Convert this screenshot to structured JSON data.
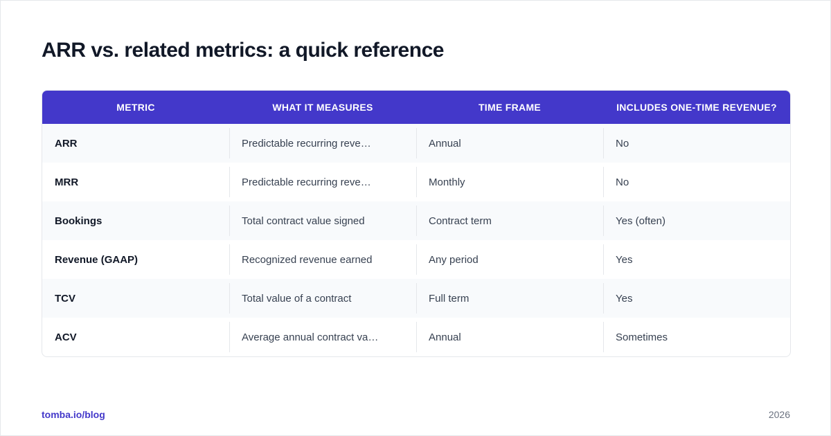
{
  "header": {
    "title": "ARR vs. related metrics: a quick reference"
  },
  "table": {
    "columns": [
      "METRIC",
      "WHAT IT MEASURES",
      "TIME FRAME",
      "INCLUDES ONE-TIME REVENUE?"
    ],
    "rows": [
      [
        "ARR",
        "Predictable recurring reve…",
        "Annual",
        "No"
      ],
      [
        "MRR",
        "Predictable recurring reve…",
        "Monthly",
        "No"
      ],
      [
        "Bookings",
        "Total contract value signed",
        "Contract term",
        "Yes (often)"
      ],
      [
        "Revenue (GAAP)",
        "Recognized revenue earned",
        "Any period",
        "Yes"
      ],
      [
        "TCV",
        "Total value of a contract",
        "Full term",
        "Yes"
      ],
      [
        "ACV",
        "Average annual contract va…",
        "Annual",
        "Sometimes"
      ]
    ]
  },
  "footer": {
    "source": "tomba.io/blog",
    "year": "2026"
  }
}
